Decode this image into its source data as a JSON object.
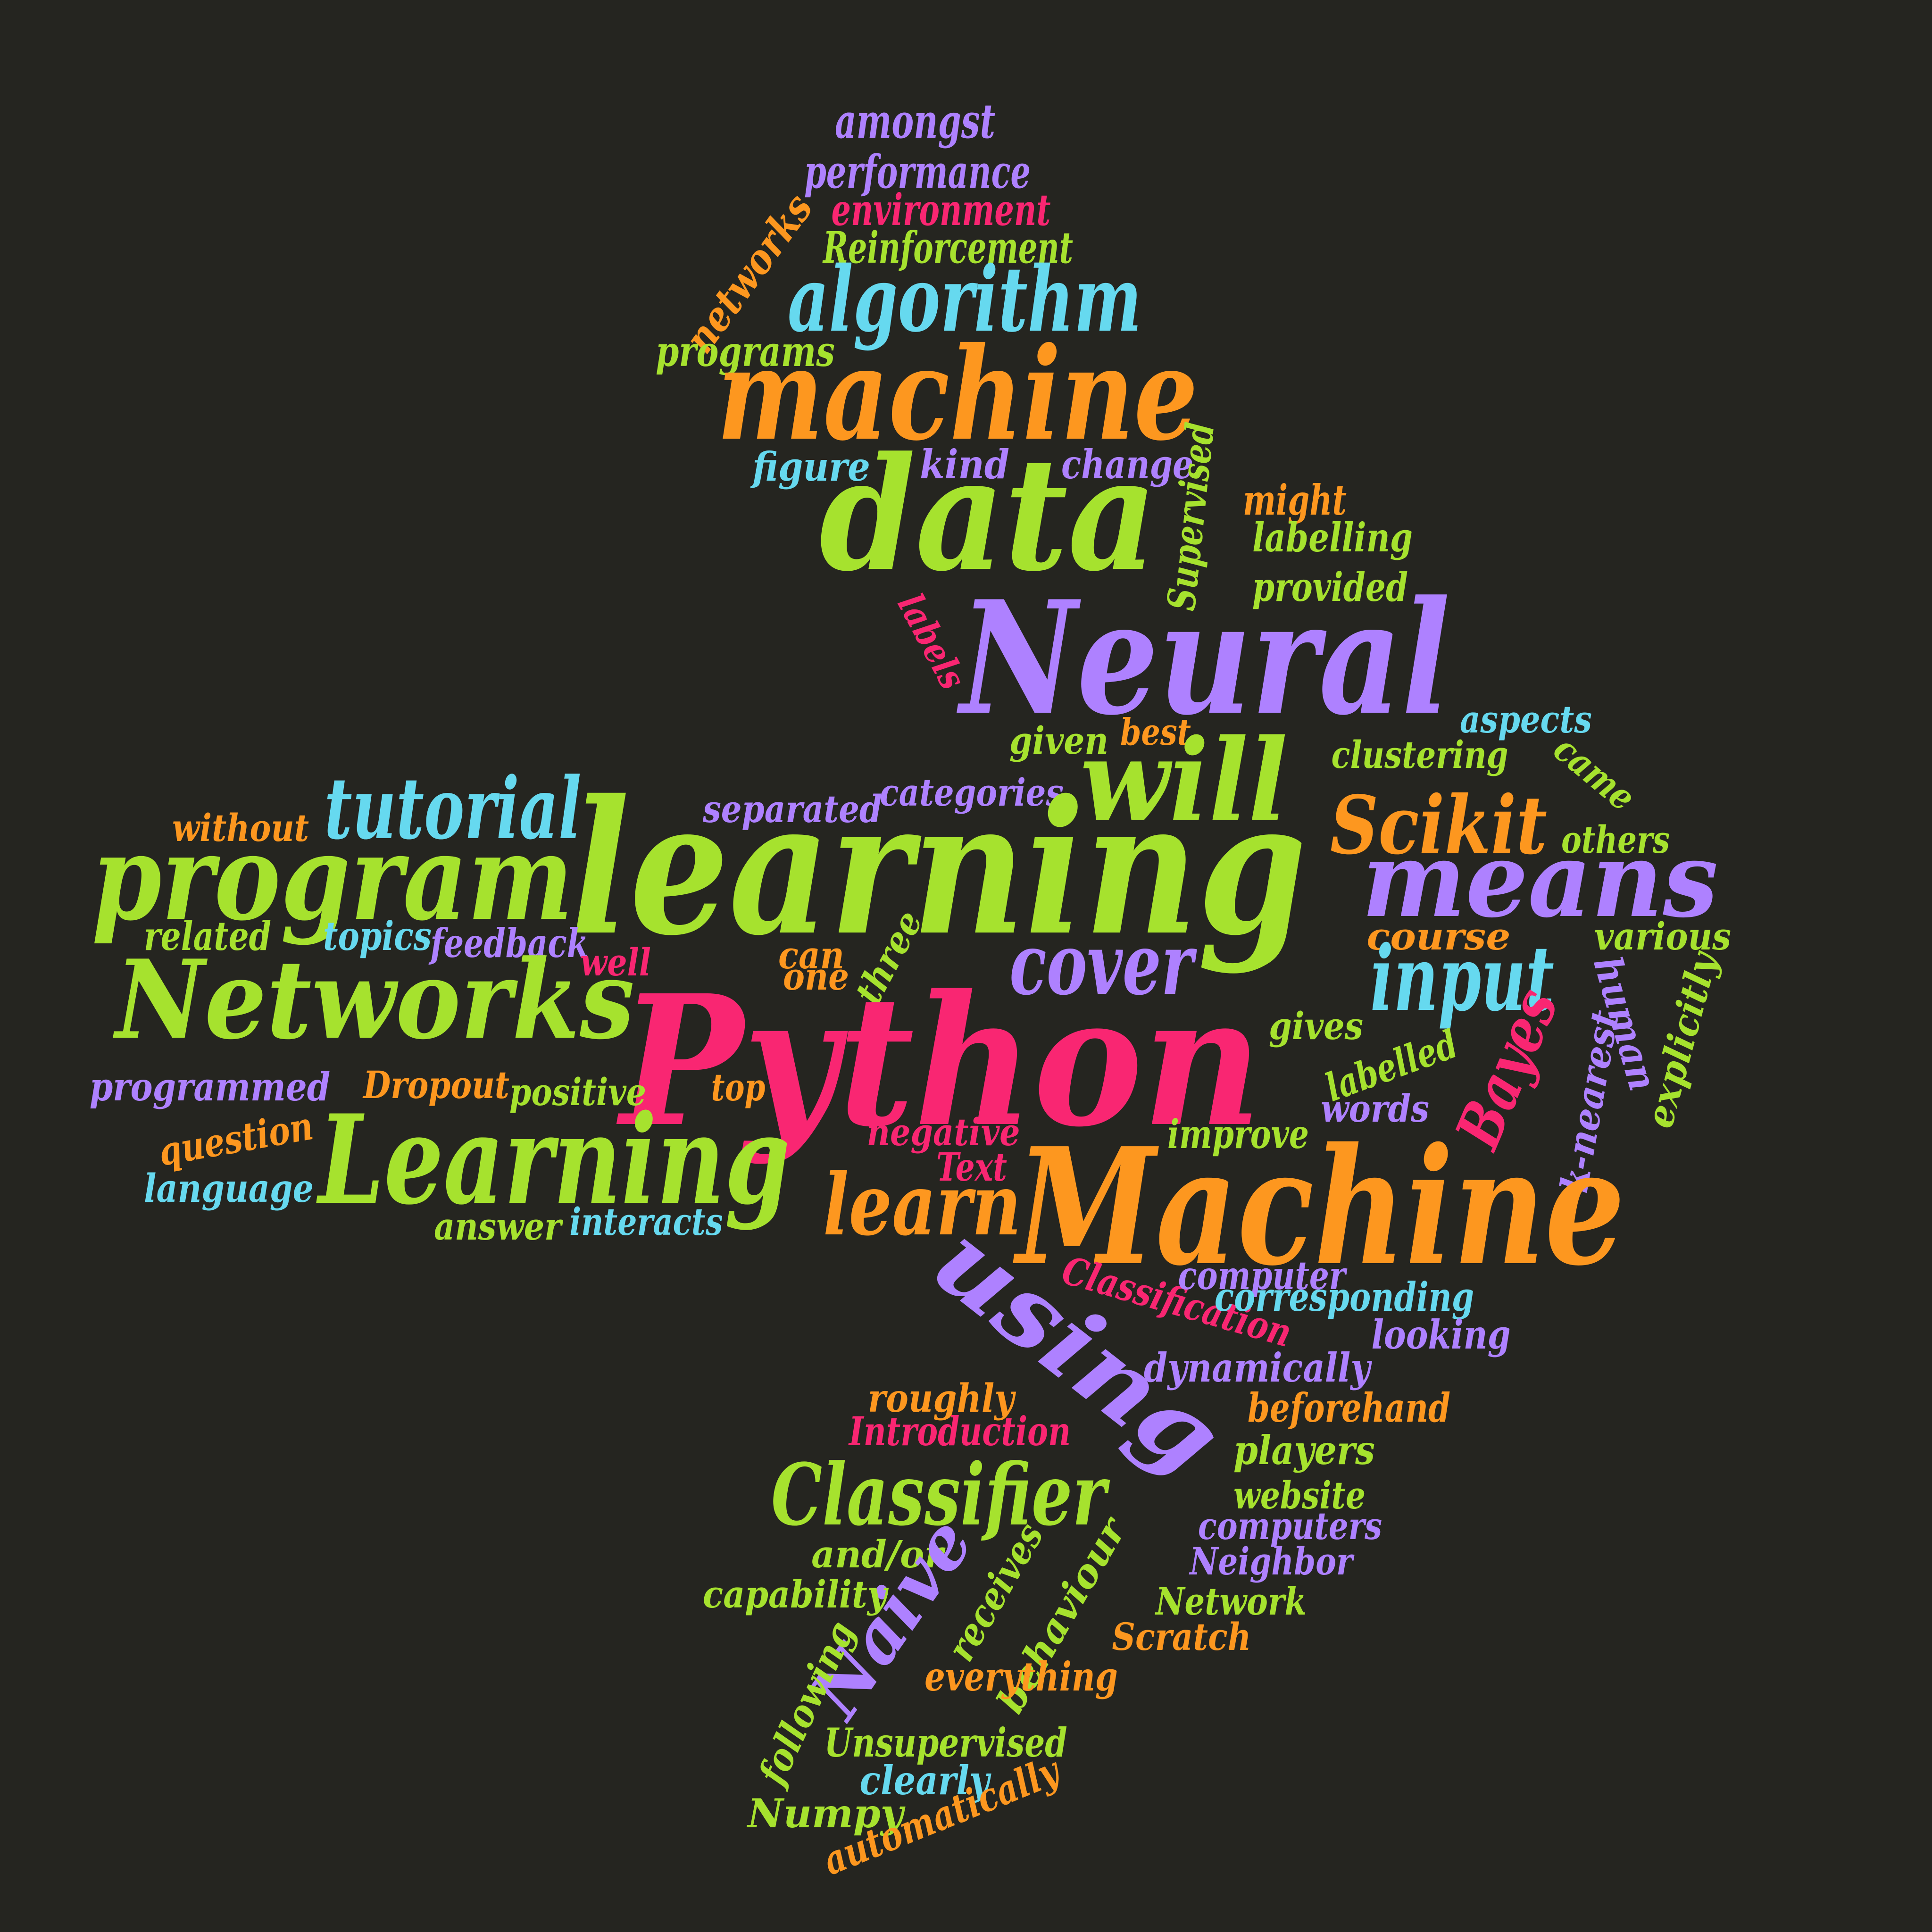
{
  "colors": {
    "background": "#252520",
    "green": "#a6e22e",
    "purple": "#ae81ff",
    "pink": "#f92672",
    "orange": "#fd971f",
    "cyan": "#66d9ef"
  },
  "words": [
    {
      "text": "amongst",
      "color": "purple"
    },
    {
      "text": "performance",
      "color": "purple"
    },
    {
      "text": "environment",
      "color": "pink"
    },
    {
      "text": "networks",
      "color": "orange"
    },
    {
      "text": "Reinforcement",
      "color": "green"
    },
    {
      "text": "algorithm",
      "color": "cyan"
    },
    {
      "text": "programs",
      "color": "green"
    },
    {
      "text": "machine",
      "color": "orange"
    },
    {
      "text": "figure",
      "color": "cyan"
    },
    {
      "text": "kind",
      "color": "purple"
    },
    {
      "text": "change",
      "color": "purple"
    },
    {
      "text": "Supervised",
      "color": "green"
    },
    {
      "text": "might",
      "color": "orange"
    },
    {
      "text": "data",
      "color": "green"
    },
    {
      "text": "labelling",
      "color": "green"
    },
    {
      "text": "provided",
      "color": "green"
    },
    {
      "text": "labels",
      "color": "pink"
    },
    {
      "text": "Neural",
      "color": "purple"
    },
    {
      "text": "aspects",
      "color": "cyan"
    },
    {
      "text": "given",
      "color": "green"
    },
    {
      "text": "best",
      "color": "orange"
    },
    {
      "text": "clustering",
      "color": "green"
    },
    {
      "text": "came",
      "color": "green"
    },
    {
      "text": "will",
      "color": "green"
    },
    {
      "text": "tutorial",
      "color": "cyan"
    },
    {
      "text": "categories",
      "color": "purple"
    },
    {
      "text": "separated",
      "color": "purple"
    },
    {
      "text": "Scikit",
      "color": "orange"
    },
    {
      "text": "without",
      "color": "orange"
    },
    {
      "text": "others",
      "color": "green"
    },
    {
      "text": "program",
      "color": "green"
    },
    {
      "text": "learning",
      "color": "green"
    },
    {
      "text": "means",
      "color": "purple"
    },
    {
      "text": "related",
      "color": "green"
    },
    {
      "text": "topics",
      "color": "cyan"
    },
    {
      "text": "feedback",
      "color": "purple"
    },
    {
      "text": "can",
      "color": "orange"
    },
    {
      "text": "three",
      "color": "green"
    },
    {
      "text": "cover",
      "color": "purple"
    },
    {
      "text": "course",
      "color": "orange"
    },
    {
      "text": "various",
      "color": "green"
    },
    {
      "text": "well",
      "color": "pink"
    },
    {
      "text": "one",
      "color": "orange"
    },
    {
      "text": "input",
      "color": "cyan"
    },
    {
      "text": "human",
      "color": "purple"
    },
    {
      "text": "Networks",
      "color": "green"
    },
    {
      "text": "Bayes",
      "color": "pink"
    },
    {
      "text": "gives",
      "color": "green"
    },
    {
      "text": "k-nearest",
      "color": "purple"
    },
    {
      "text": "explicitly",
      "color": "green"
    },
    {
      "text": "Python",
      "color": "pink"
    },
    {
      "text": "labelled",
      "color": "green"
    },
    {
      "text": "programmed",
      "color": "purple"
    },
    {
      "text": "Dropout",
      "color": "orange"
    },
    {
      "text": "positive",
      "color": "green"
    },
    {
      "text": "top",
      "color": "orange"
    },
    {
      "text": "words",
      "color": "purple"
    },
    {
      "text": "question",
      "color": "orange"
    },
    {
      "text": "negative",
      "color": "pink"
    },
    {
      "text": "improve",
      "color": "green"
    },
    {
      "text": "Learning",
      "color": "green"
    },
    {
      "text": "Text",
      "color": "pink"
    },
    {
      "text": "language",
      "color": "cyan"
    },
    {
      "text": "learn",
      "color": "orange"
    },
    {
      "text": "Machine",
      "color": "orange"
    },
    {
      "text": "answer",
      "color": "green"
    },
    {
      "text": "interacts",
      "color": "cyan"
    },
    {
      "text": "Classification",
      "color": "pink"
    },
    {
      "text": "computer",
      "color": "purple"
    },
    {
      "text": "corresponding",
      "color": "cyan"
    },
    {
      "text": "using",
      "color": "purple"
    },
    {
      "text": "looking",
      "color": "purple"
    },
    {
      "text": "dynamically",
      "color": "purple"
    },
    {
      "text": "roughly",
      "color": "orange"
    },
    {
      "text": "beforehand",
      "color": "orange"
    },
    {
      "text": "Introduction",
      "color": "pink"
    },
    {
      "text": "players",
      "color": "green"
    },
    {
      "text": "Classifier",
      "color": "green"
    },
    {
      "text": "website",
      "color": "green"
    },
    {
      "text": "computers",
      "color": "purple"
    },
    {
      "text": "and/or",
      "color": "green"
    },
    {
      "text": "Naive",
      "color": "purple"
    },
    {
      "text": "receives",
      "color": "green"
    },
    {
      "text": "behaviour",
      "color": "green"
    },
    {
      "text": "Neighbor",
      "color": "purple"
    },
    {
      "text": "capability",
      "color": "green"
    },
    {
      "text": "Network",
      "color": "green"
    },
    {
      "text": "Scratch",
      "color": "orange"
    },
    {
      "text": "following",
      "color": "green"
    },
    {
      "text": "everything",
      "color": "orange"
    },
    {
      "text": "Unsupervised",
      "color": "green"
    },
    {
      "text": "clearly",
      "color": "cyan"
    },
    {
      "text": "Numpy",
      "color": "green"
    },
    {
      "text": "automatically",
      "color": "orange"
    }
  ]
}
